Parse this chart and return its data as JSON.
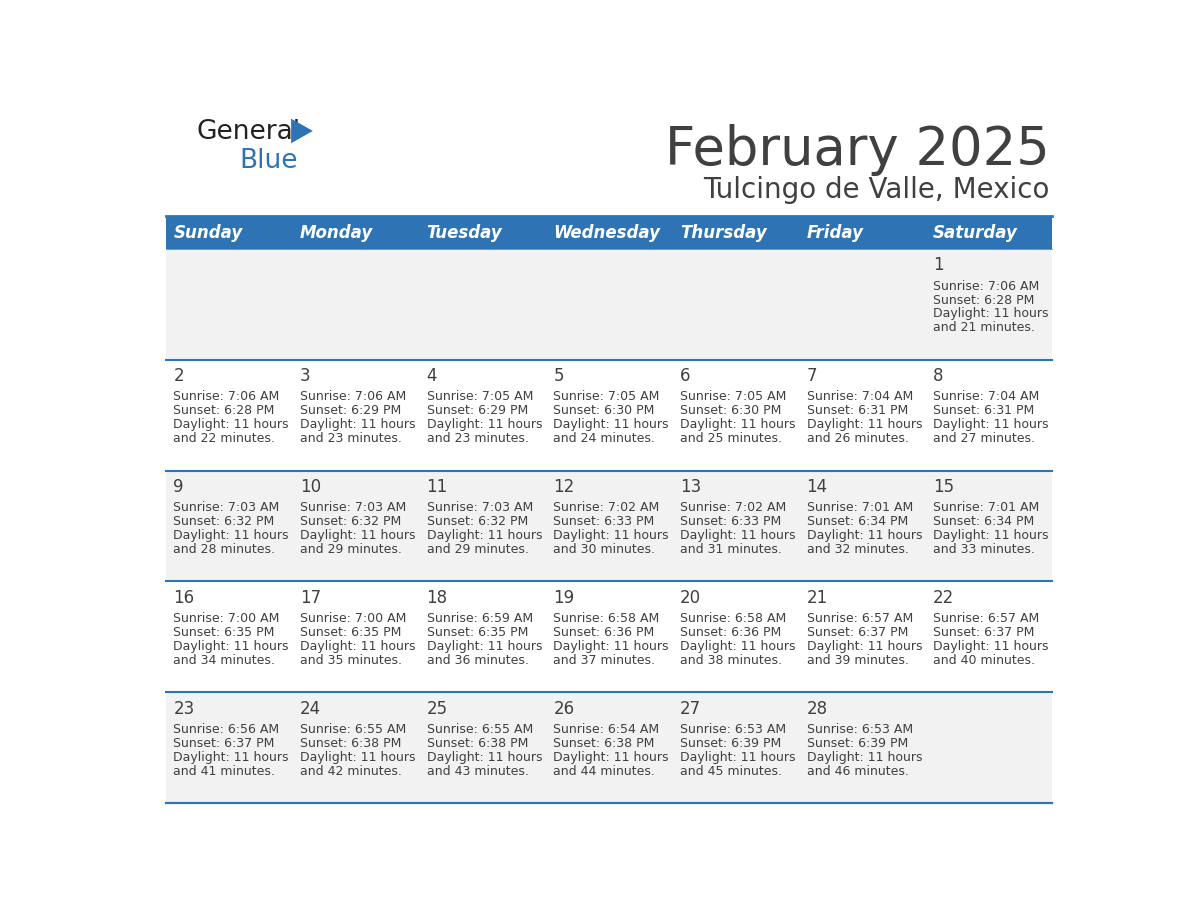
{
  "title": "February 2025",
  "subtitle": "Tulcingo de Valle, Mexico",
  "header_bg": "#2E74B5",
  "header_text_color": "#FFFFFF",
  "cell_bg_odd": "#F2F2F2",
  "cell_bg_even": "#FFFFFF",
  "day_headers": [
    "Sunday",
    "Monday",
    "Tuesday",
    "Wednesday",
    "Thursday",
    "Friday",
    "Saturday"
  ],
  "days": [
    {
      "day": 1,
      "col": 6,
      "row": 0,
      "sunrise": "7:06 AM",
      "sunset": "6:28 PM",
      "daylight_hours": 11,
      "daylight_minutes": 21
    },
    {
      "day": 2,
      "col": 0,
      "row": 1,
      "sunrise": "7:06 AM",
      "sunset": "6:28 PM",
      "daylight_hours": 11,
      "daylight_minutes": 22
    },
    {
      "day": 3,
      "col": 1,
      "row": 1,
      "sunrise": "7:06 AM",
      "sunset": "6:29 PM",
      "daylight_hours": 11,
      "daylight_minutes": 23
    },
    {
      "day": 4,
      "col": 2,
      "row": 1,
      "sunrise": "7:05 AM",
      "sunset": "6:29 PM",
      "daylight_hours": 11,
      "daylight_minutes": 23
    },
    {
      "day": 5,
      "col": 3,
      "row": 1,
      "sunrise": "7:05 AM",
      "sunset": "6:30 PM",
      "daylight_hours": 11,
      "daylight_minutes": 24
    },
    {
      "day": 6,
      "col": 4,
      "row": 1,
      "sunrise": "7:05 AM",
      "sunset": "6:30 PM",
      "daylight_hours": 11,
      "daylight_minutes": 25
    },
    {
      "day": 7,
      "col": 5,
      "row": 1,
      "sunrise": "7:04 AM",
      "sunset": "6:31 PM",
      "daylight_hours": 11,
      "daylight_minutes": 26
    },
    {
      "day": 8,
      "col": 6,
      "row": 1,
      "sunrise": "7:04 AM",
      "sunset": "6:31 PM",
      "daylight_hours": 11,
      "daylight_minutes": 27
    },
    {
      "day": 9,
      "col": 0,
      "row": 2,
      "sunrise": "7:03 AM",
      "sunset": "6:32 PM",
      "daylight_hours": 11,
      "daylight_minutes": 28
    },
    {
      "day": 10,
      "col": 1,
      "row": 2,
      "sunrise": "7:03 AM",
      "sunset": "6:32 PM",
      "daylight_hours": 11,
      "daylight_minutes": 29
    },
    {
      "day": 11,
      "col": 2,
      "row": 2,
      "sunrise": "7:03 AM",
      "sunset": "6:32 PM",
      "daylight_hours": 11,
      "daylight_minutes": 29
    },
    {
      "day": 12,
      "col": 3,
      "row": 2,
      "sunrise": "7:02 AM",
      "sunset": "6:33 PM",
      "daylight_hours": 11,
      "daylight_minutes": 30
    },
    {
      "day": 13,
      "col": 4,
      "row": 2,
      "sunrise": "7:02 AM",
      "sunset": "6:33 PM",
      "daylight_hours": 11,
      "daylight_minutes": 31
    },
    {
      "day": 14,
      "col": 5,
      "row": 2,
      "sunrise": "7:01 AM",
      "sunset": "6:34 PM",
      "daylight_hours": 11,
      "daylight_minutes": 32
    },
    {
      "day": 15,
      "col": 6,
      "row": 2,
      "sunrise": "7:01 AM",
      "sunset": "6:34 PM",
      "daylight_hours": 11,
      "daylight_minutes": 33
    },
    {
      "day": 16,
      "col": 0,
      "row": 3,
      "sunrise": "7:00 AM",
      "sunset": "6:35 PM",
      "daylight_hours": 11,
      "daylight_minutes": 34
    },
    {
      "day": 17,
      "col": 1,
      "row": 3,
      "sunrise": "7:00 AM",
      "sunset": "6:35 PM",
      "daylight_hours": 11,
      "daylight_minutes": 35
    },
    {
      "day": 18,
      "col": 2,
      "row": 3,
      "sunrise": "6:59 AM",
      "sunset": "6:35 PM",
      "daylight_hours": 11,
      "daylight_minutes": 36
    },
    {
      "day": 19,
      "col": 3,
      "row": 3,
      "sunrise": "6:58 AM",
      "sunset": "6:36 PM",
      "daylight_hours": 11,
      "daylight_minutes": 37
    },
    {
      "day": 20,
      "col": 4,
      "row": 3,
      "sunrise": "6:58 AM",
      "sunset": "6:36 PM",
      "daylight_hours": 11,
      "daylight_minutes": 38
    },
    {
      "day": 21,
      "col": 5,
      "row": 3,
      "sunrise": "6:57 AM",
      "sunset": "6:37 PM",
      "daylight_hours": 11,
      "daylight_minutes": 39
    },
    {
      "day": 22,
      "col": 6,
      "row": 3,
      "sunrise": "6:57 AM",
      "sunset": "6:37 PM",
      "daylight_hours": 11,
      "daylight_minutes": 40
    },
    {
      "day": 23,
      "col": 0,
      "row": 4,
      "sunrise": "6:56 AM",
      "sunset": "6:37 PM",
      "daylight_hours": 11,
      "daylight_minutes": 41
    },
    {
      "day": 24,
      "col": 1,
      "row": 4,
      "sunrise": "6:55 AM",
      "sunset": "6:38 PM",
      "daylight_hours": 11,
      "daylight_minutes": 42
    },
    {
      "day": 25,
      "col": 2,
      "row": 4,
      "sunrise": "6:55 AM",
      "sunset": "6:38 PM",
      "daylight_hours": 11,
      "daylight_minutes": 43
    },
    {
      "day": 26,
      "col": 3,
      "row": 4,
      "sunrise": "6:54 AM",
      "sunset": "6:38 PM",
      "daylight_hours": 11,
      "daylight_minutes": 44
    },
    {
      "day": 27,
      "col": 4,
      "row": 4,
      "sunrise": "6:53 AM",
      "sunset": "6:39 PM",
      "daylight_hours": 11,
      "daylight_minutes": 45
    },
    {
      "day": 28,
      "col": 5,
      "row": 4,
      "sunrise": "6:53 AM",
      "sunset": "6:39 PM",
      "daylight_hours": 11,
      "daylight_minutes": 46
    }
  ],
  "num_rows": 5,
  "num_cols": 7,
  "divider_color": "#2E74B5",
  "text_color": "#404040",
  "logo_general_color": "#222222",
  "logo_blue_color": "#2E74B5",
  "title_fontsize": 38,
  "subtitle_fontsize": 20,
  "header_fontsize": 12,
  "day_num_fontsize": 12,
  "info_fontsize": 9
}
